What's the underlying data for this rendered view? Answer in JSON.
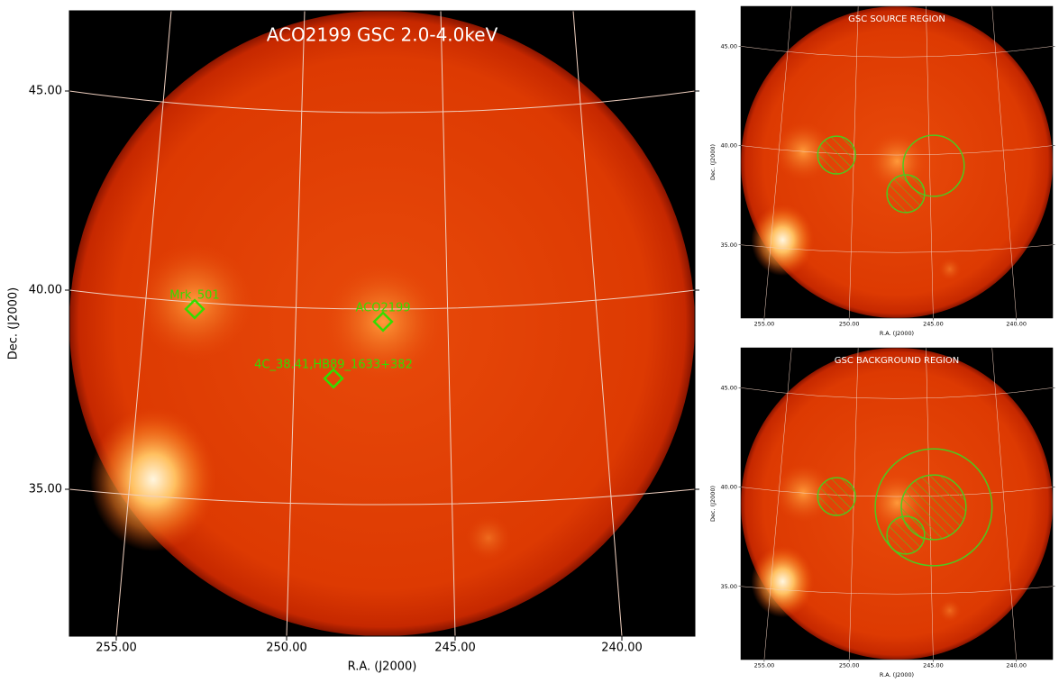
{
  "main": {
    "title": "ACO2199 GSC 2.0-4.0keV",
    "xlabel": "R.A. (J2000)",
    "ylabel": "Dec. (J2000)",
    "xticks": [
      "255.00",
      "250.00",
      "245.00",
      "240.00"
    ],
    "yticks": [
      "45.00",
      "40.00",
      "35.00"
    ],
    "sources": [
      "Mrk_501",
      "ACO2199",
      "4C_38.41,HB89_1633+382"
    ]
  },
  "source_panel": {
    "title": "GSC SOURCE REGION",
    "xlabel": "R.A. (J2000)",
    "ylabel": "Dec. (J2000)",
    "xticks": [
      "255.00",
      "250.00",
      "245.00",
      "240.00"
    ],
    "yticks": [
      "45.00",
      "40.00",
      "35.00"
    ]
  },
  "background_panel": {
    "title": "GSC BACKGROUND REGION",
    "xlabel": "R.A. (J2000)",
    "ylabel": "Dec. (J2000)",
    "xticks": [
      "255.00",
      "250.00",
      "245.00",
      "240.00"
    ],
    "yticks": [
      "45.00",
      "40.00",
      "35.00"
    ]
  }
}
